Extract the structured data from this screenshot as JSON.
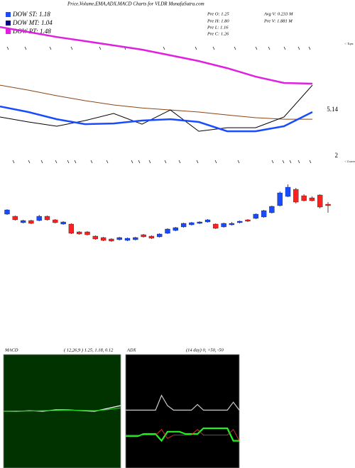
{
  "header": {
    "title": "Price,Volume,EMA,ADX,MACD Charts for VLDR MunafaSutra.com",
    "legend": [
      {
        "label": "DOW ST: 1.18",
        "color": "#1a4cff"
      },
      {
        "label": "DOW MT: 1.04",
        "color": "#000080"
      },
      {
        "label": "DOW PT: 1.48",
        "color": "#e020e0"
      }
    ],
    "stats": [
      "Pre  O: 1.25",
      "Pre  H: 1.80",
      "Pre  L: 1.16",
      "Pre  C: 1.26"
    ],
    "volume": [
      "Avg V: 0.233 M",
      "Pre  V: 1.881 M"
    ]
  },
  "chart_data": [
    {
      "type": "line",
      "x": [
        0,
        1,
        2,
        3,
        4,
        5,
        6,
        7,
        8,
        9,
        10,
        11
      ],
      "xlim": [
        0,
        12
      ],
      "ylim": [
        1.52,
        12.63
      ],
      "yticks": [
        {
          "value": 5.14,
          "label": "5.14"
        },
        2
      ],
      "grid": false,
      "annotations": [
        "< Tops",
        "< Lower"
      ],
      "series": [
        {
          "color": "#e020e0",
          "width": 2.5,
          "values": [
            10.79,
            10.45,
            10.11,
            9.83,
            9.54,
            9.25,
            8.86,
            8.47,
            7.99,
            7.41,
            6.98,
            6.93
          ]
        },
        {
          "color": "#8b4513",
          "width": 1,
          "values": [
            6.83,
            6.49,
            6.11,
            5.77,
            5.48,
            5.28,
            5.14,
            5.0,
            4.8,
            4.61,
            4.51,
            4.51
          ]
        },
        {
          "color": "#000000",
          "width": 1,
          "values": [
            4.66,
            4.32,
            4.03,
            4.42,
            4.9,
            4.17,
            5.14,
            3.69,
            3.93,
            3.93,
            4.66,
            6.83
          ]
        },
        {
          "color": "#1a4cff",
          "width": 2.5,
          "values": [
            5.38,
            5.0,
            4.51,
            4.17,
            4.22,
            4.42,
            4.51,
            4.32,
            3.69,
            3.69,
            4.03,
            5.0
          ]
        }
      ]
    },
    {
      "type": "candlestick",
      "ylim": [
        0,
        12
      ],
      "up_color": "#1a4cff",
      "down_color": "#ff2020",
      "open": [
        6.8,
        6.5,
        5.6,
        5.9,
        5.9,
        6.5,
        6.0,
        5.4,
        5.4,
        4.3,
        4.3,
        3.7,
        3.5,
        3.3,
        3.2,
        3.1,
        3.2,
        3.9,
        3.7,
        3.6,
        4.1,
        4.5,
        5.0,
        5.3,
        5.5,
        5.7,
        5.4,
        5.0,
        5.3,
        5.6,
        6.0,
        6.2,
        6.4,
        7.0,
        8.0,
        9.3,
        10.3,
        9.4,
        9.1,
        9.5,
        8.2
      ],
      "high": [
        7.5,
        6.6,
        6.0,
        6.0,
        6.7,
        6.6,
        6.1,
        5.8,
        5.5,
        4.4,
        4.4,
        3.8,
        3.6,
        3.4,
        3.6,
        3.5,
        3.6,
        4.0,
        3.8,
        4.1,
        4.8,
        5.0,
        5.6,
        5.7,
        5.8,
        6.1,
        5.5,
        5.6,
        5.7,
        5.9,
        6.1,
        6.9,
        7.4,
        8.0,
        10.0,
        11.0,
        10.5,
        9.6,
        9.3,
        9.6,
        8.5
      ],
      "low": [
        6.7,
        5.9,
        5.5,
        5.4,
        5.8,
        5.9,
        5.5,
        5.3,
        4.0,
        3.9,
        3.8,
        3.2,
        3.0,
        2.9,
        3.1,
        3.0,
        3.1,
        3.5,
        3.3,
        3.5,
        4.0,
        4.4,
        4.9,
        5.2,
        5.4,
        5.6,
        4.7,
        4.9,
        5.2,
        5.5,
        5.7,
        6.1,
        6.3,
        6.9,
        7.9,
        9.2,
        8.3,
        8.6,
        8.6,
        7.6,
        7.0
      ],
      "close": [
        7.4,
        6.0,
        5.9,
        5.5,
        6.5,
        6.0,
        5.6,
        5.7,
        4.1,
        4.0,
        3.9,
        3.3,
        3.1,
        3.0,
        3.5,
        3.4,
        3.5,
        3.6,
        3.4,
        4.0,
        4.7,
        4.9,
        5.5,
        5.6,
        5.7,
        6.0,
        4.8,
        5.5,
        5.5,
        5.8,
        5.8,
        6.8,
        7.3,
        7.9,
        9.8,
        10.6,
        8.5,
        8.7,
        8.7,
        7.8,
        8.0
      ]
    },
    {
      "type": "line",
      "title": "MACD",
      "subtitle": "( 12,26,9 ) 1.25, 1.18, 0.12",
      "background": "#003300",
      "x": [
        0,
        1,
        2,
        3,
        4,
        5,
        6,
        7,
        8,
        9
      ],
      "xlim": [
        0,
        9
      ],
      "ylim": [
        -2,
        2
      ],
      "series": [
        {
          "color": "#ffffff",
          "width": 1.2,
          "values": [
            0,
            0,
            0.02,
            0,
            0.05,
            0.05,
            0.02,
            0,
            0.1,
            0.2
          ]
        },
        {
          "color": "#22cc22",
          "width": 1.2,
          "values": [
            0,
            0.01,
            0.01,
            0.02,
            0.03,
            0.04,
            0.03,
            0.02,
            0.06,
            0.12
          ]
        }
      ]
    },
    {
      "type": "line",
      "title": "ADX",
      "subtitle": "(14 day) 0, +50, -50",
      "background": "#000000",
      "x": [
        0,
        1,
        2,
        3,
        4,
        5,
        6,
        7,
        8,
        9,
        10,
        11,
        12,
        13,
        14,
        15,
        16,
        17,
        18,
        19
      ],
      "xlim": [
        0,
        19
      ],
      "ylim": [
        0,
        100
      ],
      "series": [
        {
          "color": "#cccccc",
          "width": 1.2,
          "values": [
            51,
            51,
            51,
            51,
            51,
            51,
            64,
            55,
            51,
            51,
            51,
            51,
            56,
            51,
            51,
            51,
            51,
            51,
            58,
            51
          ]
        },
        {
          "color": "#22ee22",
          "width": 2.2,
          "values": [
            28,
            28,
            28,
            30,
            30,
            30,
            24,
            32,
            32,
            32,
            30,
            30,
            30,
            35,
            35,
            35,
            35,
            35,
            24,
            24
          ]
        },
        {
          "color": "#ff3030",
          "width": 0.8,
          "values": [
            29,
            29,
            29,
            29,
            29,
            29,
            34,
            26,
            29,
            29,
            29,
            29,
            34,
            29,
            29,
            29,
            29,
            29,
            34,
            24
          ]
        }
      ]
    }
  ]
}
